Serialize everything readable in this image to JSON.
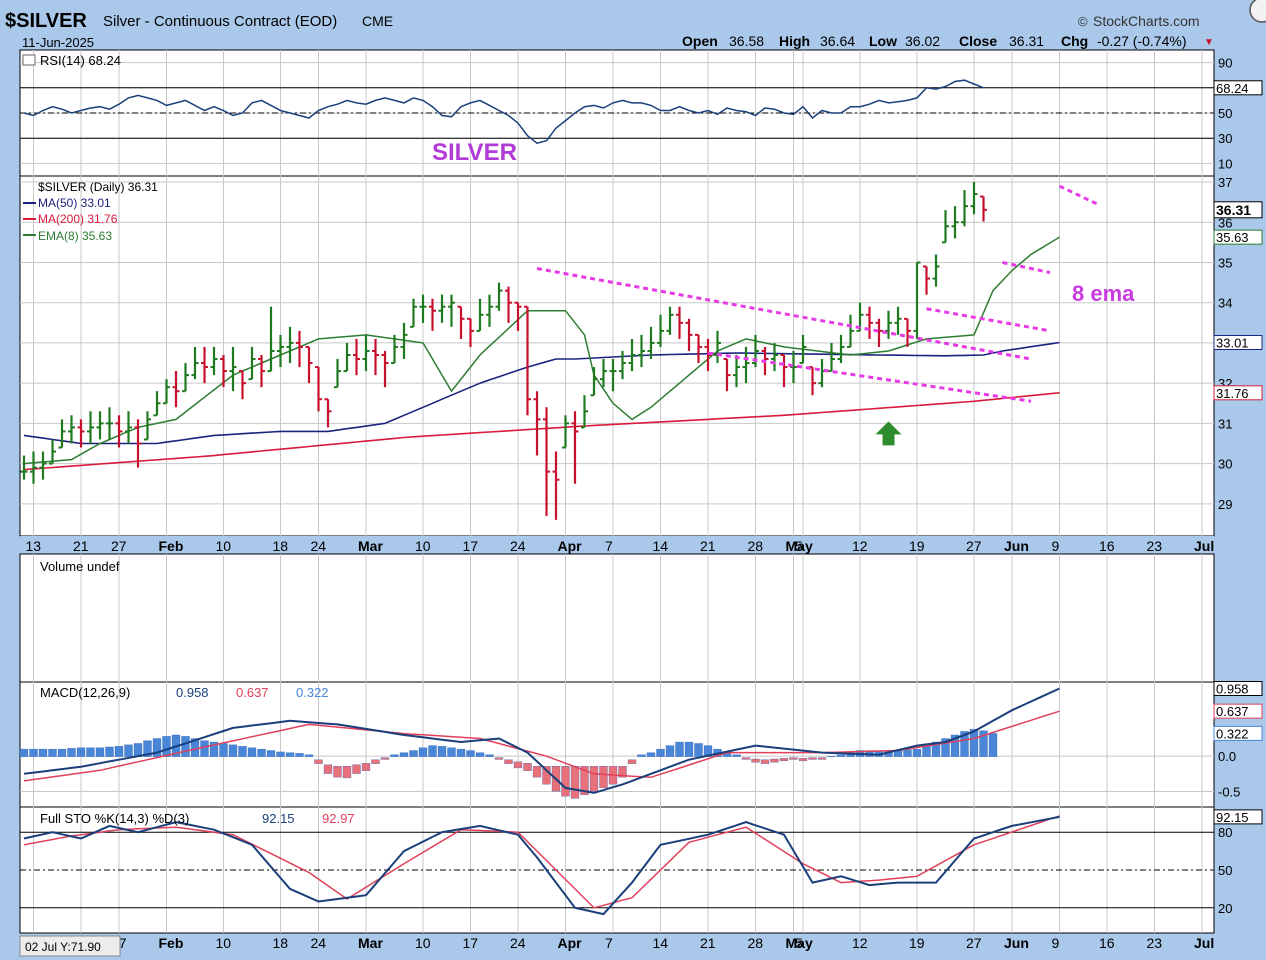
{
  "header": {
    "symbol": "$SILVER",
    "description": "Silver - Continuous Contract (EOD)",
    "exchange": "CME",
    "date": "11-Jun-2025",
    "brand": "StockCharts.com",
    "brand_symbol": "©",
    "open_label": "Open",
    "open": "36.58",
    "high_label": "High",
    "high": "36.64",
    "low_label": "Low",
    "low": "36.02",
    "close_label": "Close",
    "close": "36.31",
    "chg_label": "Chg",
    "chg": "-0.27 (-0.74%)",
    "chg_arrow": "▼"
  },
  "colors": {
    "background": "#a9c8ea",
    "panel": "#ffffff",
    "grid": "#c8c8c8",
    "up": "#1f7a1f",
    "down": "#c8102e",
    "ma50": "#1a237e",
    "ma200": "#d81b3c",
    "ema8": "#2e7d32",
    "annotation": "#e63be6",
    "rsi": "#1a3f7a",
    "macd": "#1a3f7a",
    "signal": "#e0405a",
    "histogram": "#4a86d8",
    "histogram_neg": "#e8707a",
    "sto_k": "#1a3f7a",
    "sto_d": "#e0405a",
    "arrow": "#2e8b2e"
  },
  "annotations": {
    "title": "SILVER",
    "ema_note": "8 ema"
  },
  "chart_data": [
    {
      "type": "line",
      "panel": "RSI",
      "legend": "RSI(14) 68.24",
      "last_value": "68.24",
      "y_ticks": [
        90,
        70,
        50,
        30,
        10
      ],
      "ylim": [
        0,
        100
      ],
      "reference_lines": [
        70,
        50,
        30
      ],
      "values": [
        50,
        48,
        52,
        55,
        53,
        50,
        52,
        54,
        55,
        53,
        57,
        62,
        64,
        62,
        60,
        56,
        58,
        60,
        56,
        52,
        55,
        52,
        48,
        50,
        58,
        60,
        56,
        52,
        50,
        48,
        46,
        52,
        55,
        57,
        60,
        58,
        57,
        60,
        62,
        60,
        58,
        62,
        60,
        55,
        48,
        47,
        55,
        58,
        60,
        56,
        52,
        48,
        42,
        32,
        26,
        28,
        38,
        44,
        50,
        55,
        56,
        54,
        58,
        60,
        58,
        58,
        56,
        52,
        52,
        55,
        52,
        50,
        52,
        49,
        54,
        52,
        51,
        48,
        54,
        53,
        50,
        49,
        55,
        46,
        52,
        50,
        50,
        55,
        55,
        57,
        60,
        58,
        59,
        60,
        62,
        70,
        69,
        71,
        75,
        76,
        73,
        70
      ]
    },
    {
      "type": "ohlc",
      "panel": "Price",
      "legend": "$SILVER (Daily) 36.31",
      "x_ticks": [
        "13",
        "21",
        "27",
        "Feb",
        "10",
        "18",
        "24",
        "Mar",
        "10",
        "17",
        "24",
        "Apr",
        "7",
        "14",
        "21",
        "28",
        "May",
        "5",
        "12",
        "19",
        "27",
        "Jun",
        "9",
        "16",
        "23",
        "Jul"
      ],
      "y_ticks": [
        37,
        36,
        35,
        34,
        33,
        32,
        31,
        30,
        29
      ],
      "ylim": [
        28.2,
        37.15
      ],
      "series": [
        {
          "name": "MA(50) 33.01",
          "last_value": "33.01",
          "anchor_x": [
            0,
            6,
            14,
            20,
            27,
            32,
            38,
            44,
            48,
            53,
            56,
            58,
            66,
            75,
            90,
            97,
            101,
            103,
            109
          ],
          "anchor_y": [
            30.7,
            30.5,
            30.5,
            30.7,
            30.8,
            30.8,
            31.0,
            31.6,
            32.0,
            32.4,
            32.6,
            32.6,
            32.7,
            32.75,
            32.7,
            32.68,
            32.7,
            32.8,
            33.01
          ]
        },
        {
          "name": "MA(200) 31.76",
          "last_value": "31.76",
          "anchor_x": [
            0,
            20,
            40,
            60,
            80,
            100,
            109
          ],
          "anchor_y": [
            29.85,
            30.2,
            30.65,
            30.95,
            31.2,
            31.55,
            31.76
          ]
        },
        {
          "name": "EMA(8) 35.63",
          "last_value": "35.63",
          "anchor_x": [
            0,
            5,
            8,
            12,
            16,
            22,
            27,
            31,
            36,
            42,
            45,
            48,
            53,
            57,
            59,
            60,
            62,
            64,
            66,
            70,
            73,
            76,
            80,
            87,
            91,
            95,
            100,
            102,
            104,
            106,
            109
          ],
          "anchor_y": [
            30.0,
            30.1,
            30.5,
            30.9,
            31.1,
            32.2,
            32.7,
            33.1,
            33.2,
            33.0,
            31.8,
            32.7,
            33.8,
            33.8,
            33.2,
            32.2,
            31.5,
            31.1,
            31.4,
            32.2,
            32.8,
            33.1,
            32.9,
            32.7,
            32.8,
            33.1,
            33.2,
            34.3,
            34.8,
            35.2,
            35.63
          ]
        }
      ],
      "close": [
        29.8,
        29.9,
        30.0,
        30.3,
        30.8,
        30.9,
        30.8,
        30.9,
        31.0,
        31.0,
        30.8,
        30.9,
        30.5,
        31.1,
        31.5,
        31.9,
        31.8,
        32.2,
        32.5,
        32.4,
        32.6,
        32.3,
        32.4,
        32.0,
        32.6,
        32.3,
        32.8,
        32.9,
        33.0,
        32.9,
        32.5,
        31.6,
        31.3,
        32.3,
        32.7,
        32.6,
        32.8,
        32.7,
        32.5,
        32.9,
        33.2,
        33.9,
        33.9,
        33.8,
        33.9,
        34.0,
        33.6,
        33.3,
        33.7,
        33.9,
        34.3,
        34.0,
        33.9,
        31.6,
        31.1,
        29.8,
        29.6,
        31.0,
        30.8,
        31.3,
        32.1,
        32.3,
        32.3,
        32.5,
        32.7,
        32.8,
        33.0,
        33.3,
        33.7,
        33.5,
        33.2,
        32.9,
        32.7,
        33.0,
        32.2,
        32.4,
        32.5,
        32.8,
        32.6,
        32.7,
        32.4,
        32.4,
        32.9,
        32.0,
        32.3,
        32.6,
        32.9,
        33.3,
        33.7,
        33.5,
        33.3,
        33.5,
        33.6,
        33.3,
        35.0,
        34.6,
        34.9,
        35.9,
        36.0,
        36.4,
        36.7,
        36.31
      ],
      "range": [
        [
          29.6,
          30.2
        ],
        [
          29.5,
          30.3
        ],
        [
          29.6,
          30.3
        ],
        [
          30.0,
          30.6
        ],
        [
          30.4,
          31.1
        ],
        [
          30.5,
          31.2
        ],
        [
          30.4,
          31.1
        ],
        [
          30.5,
          31.3
        ],
        [
          30.6,
          31.3
        ],
        [
          30.6,
          31.4
        ],
        [
          30.4,
          31.2
        ],
        [
          30.5,
          31.3
        ],
        [
          29.9,
          31.1
        ],
        [
          30.6,
          31.3
        ],
        [
          31.2,
          31.8
        ],
        [
          31.5,
          32.1
        ],
        [
          31.4,
          32.3
        ],
        [
          31.8,
          32.5
        ],
        [
          32.1,
          32.9
        ],
        [
          32.0,
          32.9
        ],
        [
          32.2,
          32.9
        ],
        [
          31.9,
          32.7
        ],
        [
          31.8,
          32.9
        ],
        [
          31.6,
          32.3
        ],
        [
          32.1,
          32.9
        ],
        [
          31.9,
          32.7
        ],
        [
          32.3,
          33.9
        ],
        [
          32.4,
          33.2
        ],
        [
          32.5,
          33.4
        ],
        [
          32.4,
          33.3
        ],
        [
          32.0,
          32.9
        ],
        [
          31.3,
          32.4
        ],
        [
          30.9,
          31.6
        ],
        [
          31.9,
          32.6
        ],
        [
          32.3,
          33.0
        ],
        [
          32.2,
          33.1
        ],
        [
          32.3,
          33.2
        ],
        [
          32.2,
          33.1
        ],
        [
          31.9,
          32.8
        ],
        [
          32.5,
          33.2
        ],
        [
          32.6,
          33.5
        ],
        [
          33.4,
          34.1
        ],
        [
          33.5,
          34.2
        ],
        [
          33.3,
          34.1
        ],
        [
          33.5,
          34.2
        ],
        [
          33.4,
          34.2
        ],
        [
          33.1,
          33.9
        ],
        [
          32.9,
          33.6
        ],
        [
          33.3,
          34.1
        ],
        [
          33.4,
          34.2
        ],
        [
          33.8,
          34.5
        ],
        [
          33.5,
          34.4
        ],
        [
          33.3,
          34.0
        ],
        [
          31.2,
          33.9
        ],
        [
          30.2,
          31.8
        ],
        [
          28.7,
          31.4
        ],
        [
          28.6,
          30.3
        ],
        [
          30.4,
          31.2
        ],
        [
          29.5,
          31.3
        ],
        [
          30.9,
          31.7
        ],
        [
          31.7,
          32.4
        ],
        [
          31.9,
          32.6
        ],
        [
          31.8,
          32.6
        ],
        [
          32.1,
          32.8
        ],
        [
          32.3,
          33.1
        ],
        [
          32.4,
          33.2
        ],
        [
          32.6,
          33.4
        ],
        [
          32.9,
          33.7
        ],
        [
          33.2,
          33.9
        ],
        [
          33.1,
          33.9
        ],
        [
          32.8,
          33.6
        ],
        [
          32.5,
          33.2
        ],
        [
          32.3,
          33.1
        ],
        [
          32.5,
          33.3
        ],
        [
          31.8,
          32.6
        ],
        [
          31.9,
          32.7
        ],
        [
          32.0,
          32.9
        ],
        [
          32.4,
          33.2
        ],
        [
          32.2,
          32.9
        ],
        [
          32.3,
          33.0
        ],
        [
          31.9,
          32.7
        ],
        [
          32.0,
          32.8
        ],
        [
          32.5,
          33.2
        ],
        [
          31.7,
          32.4
        ],
        [
          31.9,
          32.6
        ],
        [
          32.3,
          33.0
        ],
        [
          32.5,
          33.2
        ],
        [
          32.9,
          33.7
        ],
        [
          33.3,
          34.0
        ],
        [
          33.1,
          33.9
        ],
        [
          32.9,
          33.6
        ],
        [
          33.1,
          33.8
        ],
        [
          33.2,
          33.9
        ],
        [
          32.9,
          33.6
        ],
        [
          33.1,
          35.0
        ],
        [
          34.2,
          34.9
        ],
        [
          34.4,
          35.2
        ],
        [
          35.5,
          36.3
        ],
        [
          35.6,
          36.4
        ],
        [
          35.9,
          36.8
        ],
        [
          36.2,
          37.0
        ],
        [
          36.02,
          36.64
        ]
      ]
    },
    {
      "type": "bar",
      "panel": "Volume",
      "legend": "Volume undef",
      "values": []
    },
    {
      "type": "line",
      "panel": "MACD",
      "legend_prefix": "MACD(12,26,9)",
      "macd_value": "0.958",
      "signal_value": "0.637",
      "hist_value": "0.322",
      "y_ticks": [
        0.0,
        -0.5
      ],
      "ylim": [
        -0.72,
        1.05
      ],
      "macd_x": [
        0,
        6,
        14,
        22,
        28,
        33,
        40,
        46,
        50,
        53,
        57,
        60,
        63,
        66,
        70,
        77,
        84,
        90,
        94,
        97,
        100,
        104,
        109
      ],
      "macd_y": [
        -0.25,
        -0.15,
        0.05,
        0.4,
        0.5,
        0.45,
        0.3,
        0.2,
        0.25,
        0.05,
        -0.45,
        -0.52,
        -0.4,
        -0.25,
        -0.05,
        0.15,
        0.05,
        0.02,
        0.15,
        0.2,
        0.35,
        0.65,
        0.958
      ],
      "signal_x": [
        0,
        8,
        18,
        30,
        40,
        48,
        55,
        60,
        66,
        74,
        84,
        92,
        100,
        109
      ],
      "signal_y": [
        -0.35,
        -0.2,
        0.1,
        0.45,
        0.32,
        0.25,
        0.0,
        -0.25,
        -0.3,
        0.05,
        0.05,
        0.08,
        0.25,
        0.637
      ],
      "histogram": [
        0.1,
        0.1,
        0.1,
        0.1,
        0.1,
        0.11,
        0.12,
        0.12,
        0.12,
        0.13,
        0.14,
        0.16,
        0.18,
        0.22,
        0.25,
        0.28,
        0.3,
        0.28,
        0.25,
        0.22,
        0.2,
        0.18,
        0.16,
        0.14,
        0.12,
        0.1,
        0.08,
        0.06,
        0.05,
        0.04,
        0.02,
        -0.05,
        -0.12,
        -0.15,
        -0.16,
        -0.12,
        -0.1,
        -0.05,
        -0.02,
        0.02,
        0.05,
        0.08,
        0.12,
        0.15,
        0.14,
        0.12,
        0.1,
        0.08,
        0.05,
        0.02,
        -0.02,
        -0.05,
        -0.08,
        -0.1,
        -0.15,
        -0.25,
        -0.35,
        -0.42,
        -0.45,
        -0.4,
        -0.35,
        -0.3,
        -0.25,
        -0.15,
        -0.05,
        0.02,
        0.05,
        0.1,
        0.15,
        0.2,
        0.2,
        0.18,
        0.15,
        0.1,
        0.05,
        0.02,
        -0.02,
        -0.04,
        -0.05,
        -0.04,
        -0.03,
        -0.02,
        -0.03,
        -0.02,
        -0.02,
        0.0,
        0.02,
        0.05,
        0.08,
        0.08,
        0.07,
        0.06,
        0.08,
        0.09,
        0.1,
        0.15,
        0.2,
        0.25,
        0.3,
        0.35,
        0.38,
        0.36,
        0.322
      ]
    },
    {
      "type": "line",
      "panel": "STO",
      "legend_prefix": "Full STO %K(14,3) %D(3)",
      "k_value": "92.15",
      "d_value": "92.97",
      "y_ticks": [
        80,
        50,
        20
      ],
      "ylim": [
        0,
        100
      ],
      "reference_lines": [
        80,
        50,
        20
      ],
      "k_x": [
        0,
        3,
        6,
        9,
        12,
        16,
        20,
        24,
        28,
        31,
        36,
        40,
        44,
        48,
        52,
        54,
        58,
        61,
        64,
        67,
        72,
        76,
        80,
        83,
        86,
        89,
        92,
        96,
        100,
        104,
        109
      ],
      "k_y": [
        75,
        80,
        75,
        85,
        80,
        88,
        82,
        70,
        35,
        25,
        30,
        65,
        80,
        85,
        78,
        60,
        20,
        15,
        40,
        70,
        78,
        88,
        78,
        40,
        45,
        38,
        40,
        40,
        75,
        85,
        92.15
      ],
      "d_x": [
        0,
        5,
        10,
        16,
        22,
        30,
        34,
        40,
        46,
        52,
        56,
        60,
        64,
        70,
        76,
        82,
        86,
        90,
        94,
        100,
        109
      ],
      "d_y": [
        70,
        77,
        82,
        84,
        78,
        48,
        27,
        55,
        82,
        80,
        50,
        20,
        28,
        72,
        84,
        55,
        40,
        42,
        45,
        70,
        92.97
      ]
    }
  ],
  "footer_tooltip": "02 Jul Y:71.90"
}
